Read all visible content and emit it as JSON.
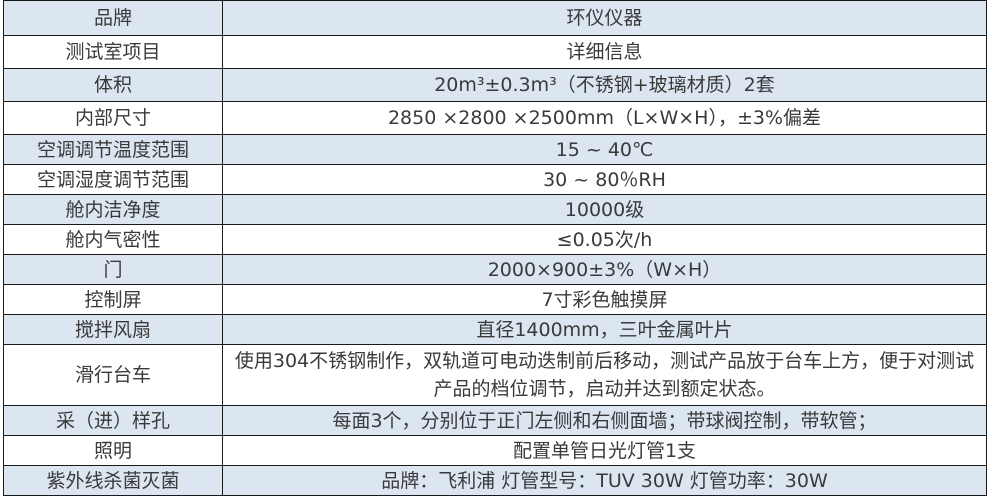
{
  "table": {
    "rows": [
      {
        "key": "品牌",
        "value": "环仪仪器"
      },
      {
        "key": "测试室项目",
        "value": "详细信息"
      },
      {
        "key": "体积",
        "value": "20m³±0.3m³（不锈钢+玻璃材质）2套"
      },
      {
        "key": "内部尺寸",
        "value": "2850 ×2800 ×2500mm（L×W×H），±3%偏差"
      },
      {
        "key": "空调调节温度范围",
        "value": "15 ~ 40℃"
      },
      {
        "key": "空调湿度调节范围",
        "value": "30 ~ 80％RH"
      },
      {
        "key": "舱内洁净度",
        "value": "10000级"
      },
      {
        "key": "舱内气密性",
        "value": "≤0.05次/h"
      },
      {
        "key": "门",
        "value": "2000×900±3%（W×H）"
      },
      {
        "key": "控制屏",
        "value": "7寸彩色触摸屏"
      },
      {
        "key": "搅拌风扇",
        "value": "直径1400mm，三叶金属叶片"
      },
      {
        "key": "滑行台车",
        "value": "使用304不锈钢制作，双轨道可电动迭制前后移动，测试产品放于台车上方，便于对测试产品的档位调节，启动并达到额定状态。"
      },
      {
        "key": "采（进）样孔",
        "value": "每面3个，分别位于正门左侧和右侧面墙；带球阀控制，带软管；"
      },
      {
        "key": "照明",
        "value": "配置单管日光灯管1支"
      },
      {
        "key": "紫外线杀菌灭菌",
        "value": "品牌：飞利浦 灯管型号：TUV 30W 灯管功率：30W"
      }
    ]
  },
  "colors": {
    "stripe": "#dce6f1",
    "border": "#1a1a1a",
    "text": "#3a3a3a"
  }
}
